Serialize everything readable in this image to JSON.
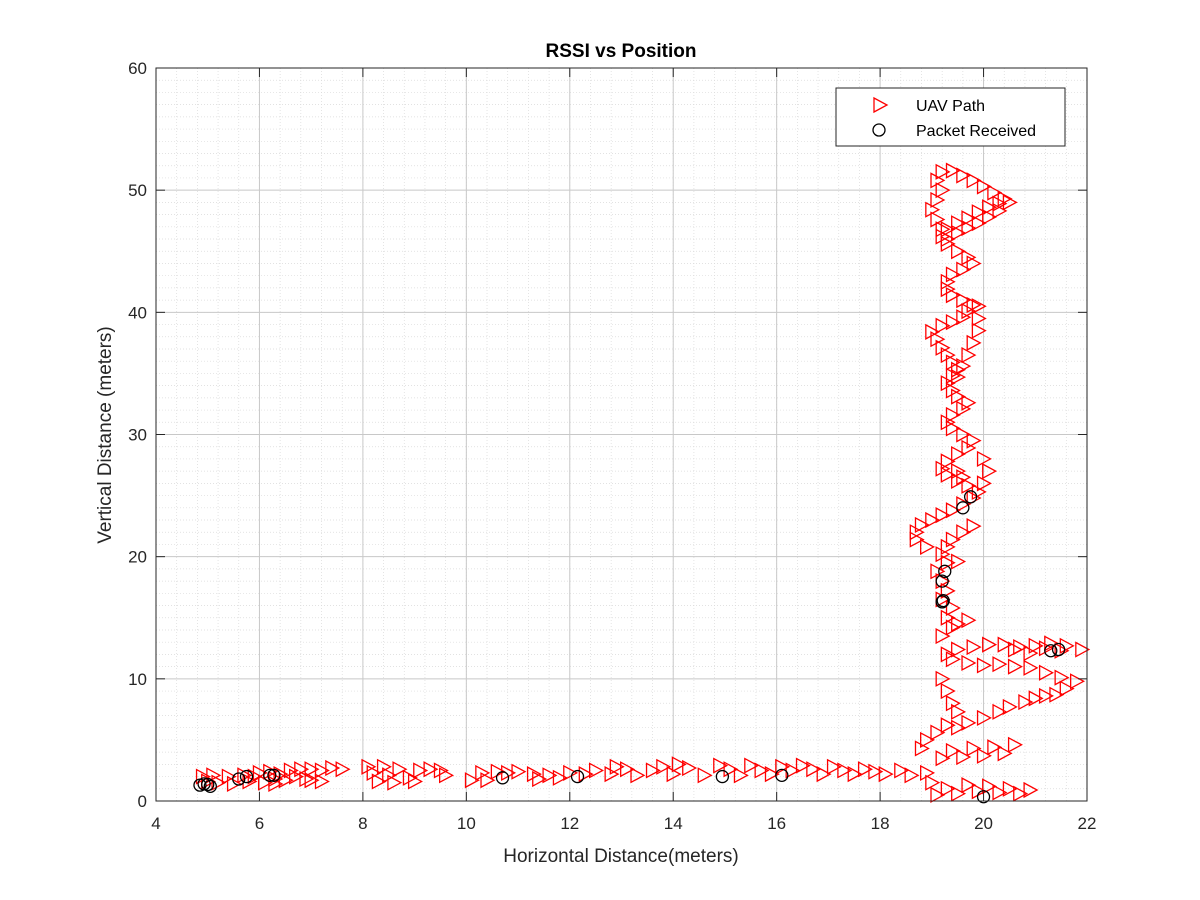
{
  "chart_data": {
    "type": "scatter",
    "title": "RSSI vs Position",
    "xlabel": "Horizontal Distance(meters)",
    "ylabel": "Vertical Distance (meters)",
    "xlim": [
      4,
      22
    ],
    "ylim": [
      0,
      60
    ],
    "xticks": [
      "4",
      "6",
      "8",
      "10",
      "12",
      "14",
      "16",
      "18",
      "20",
      "22"
    ],
    "yticks": [
      "0",
      "10",
      "20",
      "30",
      "40",
      "50",
      "60"
    ],
    "grid": true,
    "minor_grid": true,
    "legend_position": "top-right",
    "series": [
      {
        "name": "UAV Path",
        "marker": "triangle-right",
        "color": "#ff0000",
        "points": [
          [
            4.9,
            2.0
          ],
          [
            5.0,
            1.6
          ],
          [
            5.1,
            2.1
          ],
          [
            5.2,
            1.5
          ],
          [
            5.4,
            2.0
          ],
          [
            5.5,
            1.4
          ],
          [
            5.7,
            2.1
          ],
          [
            5.8,
            1.6
          ],
          [
            5.9,
            2.0
          ],
          [
            6.0,
            2.3
          ],
          [
            6.1,
            1.5
          ],
          [
            6.2,
            2.4
          ],
          [
            6.3,
            1.8
          ],
          [
            6.3,
            1.4
          ],
          [
            6.4,
            2.2
          ],
          [
            6.5,
            1.7
          ],
          [
            6.6,
            2.5
          ],
          [
            6.7,
            2.0
          ],
          [
            6.8,
            2.6
          ],
          [
            6.9,
            1.8
          ],
          [
            7.0,
            2.6
          ],
          [
            7.2,
            2.5
          ],
          [
            7.4,
            2.7
          ],
          [
            7.6,
            2.6
          ],
          [
            7.0,
            1.7
          ],
          [
            7.2,
            1.6
          ],
          [
            8.1,
            2.8
          ],
          [
            8.2,
            2.3
          ],
          [
            8.3,
            1.6
          ],
          [
            8.4,
            2.8
          ],
          [
            8.5,
            2.1
          ],
          [
            8.6,
            1.5
          ],
          [
            8.7,
            2.6
          ],
          [
            8.9,
            1.9
          ],
          [
            9.0,
            1.6
          ],
          [
            9.1,
            2.5
          ],
          [
            9.3,
            2.6
          ],
          [
            9.5,
            2.5
          ],
          [
            9.6,
            2.1
          ],
          [
            10.1,
            1.7
          ],
          [
            10.3,
            2.3
          ],
          [
            10.4,
            1.7
          ],
          [
            10.6,
            2.4
          ],
          [
            10.8,
            2.3
          ],
          [
            11.0,
            2.4
          ],
          [
            11.3,
            2.2
          ],
          [
            11.4,
            1.8
          ],
          [
            11.6,
            2.1
          ],
          [
            11.8,
            1.9
          ],
          [
            12.0,
            2.3
          ],
          [
            12.3,
            2.2
          ],
          [
            12.5,
            2.5
          ],
          [
            12.8,
            2.2
          ],
          [
            12.9,
            2.8
          ],
          [
            13.1,
            2.6
          ],
          [
            13.3,
            2.1
          ],
          [
            13.6,
            2.5
          ],
          [
            13.8,
            2.8
          ],
          [
            14.0,
            2.2
          ],
          [
            14.1,
            3.0
          ],
          [
            14.3,
            2.7
          ],
          [
            14.6,
            2.1
          ],
          [
            14.9,
            2.9
          ],
          [
            15.1,
            2.6
          ],
          [
            15.3,
            2.1
          ],
          [
            15.5,
            2.9
          ],
          [
            15.7,
            2.5
          ],
          [
            15.9,
            2.2
          ],
          [
            16.1,
            2.8
          ],
          [
            16.3,
            2.5
          ],
          [
            16.5,
            2.9
          ],
          [
            16.7,
            2.6
          ],
          [
            16.9,
            2.2
          ],
          [
            17.1,
            2.8
          ],
          [
            17.3,
            2.5
          ],
          [
            17.5,
            2.2
          ],
          [
            17.7,
            2.6
          ],
          [
            17.9,
            2.4
          ],
          [
            18.1,
            2.2
          ],
          [
            18.4,
            2.5
          ],
          [
            18.6,
            2.1
          ],
          [
            18.9,
            2.3
          ],
          [
            19.0,
            1.5
          ],
          [
            19.1,
            0.5
          ],
          [
            19.3,
            1.0
          ],
          [
            19.5,
            0.6
          ],
          [
            19.7,
            1.3
          ],
          [
            19.9,
            0.8
          ],
          [
            20.1,
            1.2
          ],
          [
            20.3,
            0.7
          ],
          [
            20.5,
            1.0
          ],
          [
            20.7,
            0.6
          ],
          [
            20.9,
            0.9
          ],
          [
            19.2,
            3.5
          ],
          [
            19.4,
            4.1
          ],
          [
            19.6,
            3.6
          ],
          [
            19.8,
            4.3
          ],
          [
            20.0,
            3.7
          ],
          [
            20.2,
            4.4
          ],
          [
            20.4,
            3.9
          ],
          [
            20.6,
            4.6
          ],
          [
            18.8,
            4.3
          ],
          [
            18.9,
            5.0
          ],
          [
            19.1,
            5.6
          ],
          [
            19.3,
            6.2
          ],
          [
            19.5,
            6.0
          ],
          [
            19.7,
            6.4
          ],
          [
            20.0,
            6.8
          ],
          [
            20.3,
            7.3
          ],
          [
            20.5,
            7.7
          ],
          [
            20.8,
            8.1
          ],
          [
            21.0,
            8.4
          ],
          [
            21.2,
            8.6
          ],
          [
            21.4,
            8.7
          ],
          [
            21.6,
            9.2
          ],
          [
            21.8,
            9.8
          ],
          [
            21.5,
            10.1
          ],
          [
            21.2,
            10.5
          ],
          [
            20.9,
            10.9
          ],
          [
            20.6,
            11.0
          ],
          [
            20.3,
            11.2
          ],
          [
            20.0,
            11.1
          ],
          [
            19.7,
            11.3
          ],
          [
            19.4,
            11.6
          ],
          [
            19.3,
            12.0
          ],
          [
            19.5,
            12.4
          ],
          [
            19.8,
            12.6
          ],
          [
            20.1,
            12.8
          ],
          [
            20.4,
            12.8
          ],
          [
            20.7,
            12.6
          ],
          [
            21.0,
            12.7
          ],
          [
            21.3,
            12.9
          ],
          [
            21.6,
            12.7
          ],
          [
            21.9,
            12.4
          ],
          [
            21.5,
            12.3
          ],
          [
            21.2,
            12.5
          ],
          [
            20.9,
            12.1
          ],
          [
            20.6,
            12.4
          ],
          [
            19.3,
            9.0
          ],
          [
            19.2,
            10.0
          ],
          [
            19.4,
            8.0
          ],
          [
            19.5,
            7.3
          ],
          [
            19.2,
            13.5
          ],
          [
            19.4,
            14.2
          ],
          [
            19.3,
            15.0
          ],
          [
            19.4,
            15.8
          ],
          [
            19.2,
            16.5
          ],
          [
            19.3,
            17.2
          ],
          [
            19.2,
            18.0
          ],
          [
            19.1,
            18.8
          ],
          [
            19.3,
            19.5
          ],
          [
            19.2,
            20.2
          ],
          [
            18.9,
            20.8
          ],
          [
            18.7,
            21.4
          ],
          [
            18.7,
            22.0
          ],
          [
            18.8,
            22.6
          ],
          [
            19.0,
            23.0
          ],
          [
            19.2,
            23.4
          ],
          [
            19.4,
            23.8
          ],
          [
            19.6,
            24.3
          ],
          [
            19.8,
            24.8
          ],
          [
            19.9,
            25.3
          ],
          [
            19.7,
            25.8
          ],
          [
            19.5,
            26.2
          ],
          [
            19.3,
            26.7
          ],
          [
            19.2,
            27.2
          ],
          [
            19.3,
            27.8
          ],
          [
            19.5,
            28.4
          ],
          [
            19.7,
            28.9
          ],
          [
            19.8,
            29.5
          ],
          [
            19.6,
            30.0
          ],
          [
            19.4,
            30.5
          ],
          [
            19.3,
            31.0
          ],
          [
            19.4,
            31.6
          ],
          [
            19.6,
            32.1
          ],
          [
            19.7,
            32.6
          ],
          [
            19.5,
            33.1
          ],
          [
            19.4,
            33.6
          ],
          [
            19.3,
            34.2
          ],
          [
            19.4,
            34.8
          ],
          [
            19.5,
            35.3
          ],
          [
            19.4,
            35.9
          ],
          [
            19.3,
            36.5
          ],
          [
            19.2,
            37.1
          ],
          [
            19.1,
            37.8
          ],
          [
            19.0,
            38.4
          ],
          [
            19.2,
            38.9
          ],
          [
            19.4,
            39.2
          ],
          [
            19.6,
            39.6
          ],
          [
            19.7,
            40.1
          ],
          [
            19.8,
            40.6
          ],
          [
            19.6,
            41.0
          ],
          [
            19.4,
            41.4
          ],
          [
            19.3,
            41.9
          ],
          [
            19.3,
            42.5
          ],
          [
            19.4,
            43.1
          ],
          [
            19.6,
            43.5
          ],
          [
            19.8,
            44.0
          ],
          [
            19.7,
            44.5
          ],
          [
            19.5,
            45.0
          ],
          [
            19.3,
            45.6
          ],
          [
            19.2,
            46.2
          ],
          [
            19.3,
            46.8
          ],
          [
            19.5,
            47.3
          ],
          [
            19.7,
            47.7
          ],
          [
            19.9,
            48.2
          ],
          [
            20.1,
            48.6
          ],
          [
            20.3,
            48.9
          ],
          [
            20.5,
            49.0
          ],
          [
            20.3,
            48.3
          ],
          [
            20.1,
            47.8
          ],
          [
            19.9,
            47.3
          ],
          [
            19.7,
            46.9
          ],
          [
            19.5,
            46.5
          ],
          [
            19.3,
            46.0
          ],
          [
            19.2,
            46.8
          ],
          [
            19.1,
            47.6
          ],
          [
            19.0,
            48.4
          ],
          [
            19.1,
            49.2
          ],
          [
            19.2,
            50.0
          ],
          [
            19.1,
            50.8
          ],
          [
            19.2,
            51.5
          ],
          [
            19.4,
            51.6
          ],
          [
            19.6,
            51.2
          ],
          [
            19.8,
            50.8
          ],
          [
            20.0,
            50.3
          ],
          [
            20.2,
            49.8
          ],
          [
            20.4,
            49.3
          ],
          [
            19.9,
            40.5
          ],
          [
            19.9,
            39.5
          ],
          [
            19.9,
            38.5
          ],
          [
            19.8,
            37.5
          ],
          [
            19.7,
            36.5
          ],
          [
            19.6,
            35.6
          ],
          [
            19.5,
            34.7
          ],
          [
            19.5,
            27.0
          ],
          [
            19.6,
            26.5
          ],
          [
            20.0,
            28.0
          ],
          [
            20.1,
            27.0
          ],
          [
            20.0,
            26.0
          ],
          [
            19.8,
            22.5
          ],
          [
            19.6,
            22.0
          ],
          [
            19.4,
            21.4
          ],
          [
            19.3,
            20.8
          ],
          [
            19.5,
            19.6
          ],
          [
            19.5,
            14.5
          ],
          [
            19.7,
            14.8
          ]
        ]
      },
      {
        "name": "Packet Received",
        "marker": "circle",
        "color": "#000000",
        "points": [
          [
            4.85,
            1.3
          ],
          [
            4.93,
            1.4
          ],
          [
            5.0,
            1.35
          ],
          [
            5.05,
            1.2
          ],
          [
            5.6,
            1.8
          ],
          [
            5.75,
            2.0
          ],
          [
            6.2,
            2.1
          ],
          [
            6.28,
            2.1
          ],
          [
            10.7,
            1.9
          ],
          [
            12.15,
            2.0
          ],
          [
            14.95,
            2.0
          ],
          [
            16.1,
            2.1
          ],
          [
            19.6,
            24.0
          ],
          [
            19.75,
            24.9
          ],
          [
            19.2,
            18.0
          ],
          [
            19.25,
            18.8
          ],
          [
            19.2,
            16.3
          ],
          [
            19.22,
            16.4
          ],
          [
            21.3,
            12.3
          ],
          [
            21.45,
            12.4
          ],
          [
            20.0,
            0.35
          ]
        ]
      }
    ]
  }
}
